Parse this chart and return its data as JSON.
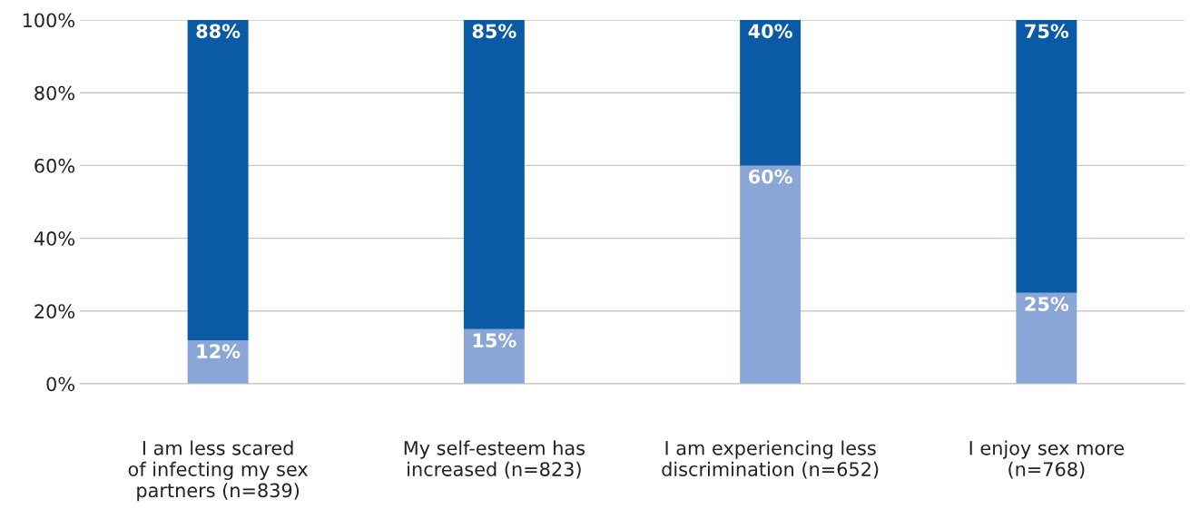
{
  "chart_data": {
    "type": "bar",
    "stacked": true,
    "categories": [
      "I am less scared\nof infecting my sex\npartners (n=839)",
      "My self-esteem has\nincreased (n=823)",
      "I am experiencing less\ndiscrimination (n=652)",
      "I enjoy sex more\n(n=768)"
    ],
    "series": [
      {
        "color": "#8aa6d6",
        "values": [
          12,
          15,
          60,
          25
        ],
        "value_labels": [
          "12%",
          "15%",
          "60%",
          "25%"
        ]
      },
      {
        "color": "#0b5aa6",
        "values": [
          88,
          85,
          40,
          75
        ],
        "value_labels": [
          "88%",
          "85%",
          "40%",
          "75%"
        ]
      }
    ],
    "ylim": [
      0,
      100
    ],
    "yticks": [
      {
        "value": 0,
        "label": "0%"
      },
      {
        "value": 20,
        "label": "20%"
      },
      {
        "value": 40,
        "label": "40%"
      },
      {
        "value": 60,
        "label": "60%"
      },
      {
        "value": 80,
        "label": "80%"
      },
      {
        "value": 100,
        "label": "100%"
      }
    ],
    "grid": "y",
    "legend": false
  }
}
